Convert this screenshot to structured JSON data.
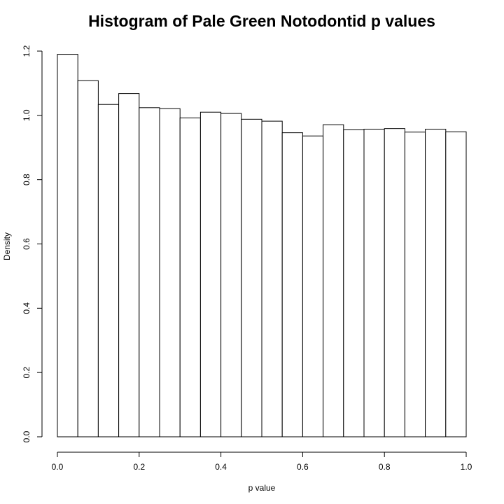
{
  "chart_data": {
    "type": "bar",
    "title": "Histogram of Pale Green Notodontid p values",
    "xlabel": "p value",
    "ylabel": "Density",
    "xlim": [
      0,
      1
    ],
    "ylim": [
      0,
      1.2
    ],
    "x_ticks": [
      "0.0",
      "0.2",
      "0.4",
      "0.6",
      "0.8",
      "1.0"
    ],
    "y_ticks": [
      "0.0",
      "0.2",
      "0.4",
      "0.6",
      "0.8",
      "1.0",
      "1.2"
    ],
    "bin_width": 0.05,
    "bins": [
      {
        "start": 0.0,
        "end": 0.05,
        "value": 1.19
      },
      {
        "start": 0.05,
        "end": 0.1,
        "value": 1.108
      },
      {
        "start": 0.1,
        "end": 0.15,
        "value": 1.034
      },
      {
        "start": 0.15,
        "end": 0.2,
        "value": 1.068
      },
      {
        "start": 0.2,
        "end": 0.25,
        "value": 1.024
      },
      {
        "start": 0.25,
        "end": 0.3,
        "value": 1.021
      },
      {
        "start": 0.3,
        "end": 0.35,
        "value": 0.992
      },
      {
        "start": 0.35,
        "end": 0.4,
        "value": 1.01
      },
      {
        "start": 0.4,
        "end": 0.45,
        "value": 1.006
      },
      {
        "start": 0.45,
        "end": 0.5,
        "value": 0.988
      },
      {
        "start": 0.5,
        "end": 0.55,
        "value": 0.982
      },
      {
        "start": 0.55,
        "end": 0.6,
        "value": 0.946
      },
      {
        "start": 0.6,
        "end": 0.65,
        "value": 0.936
      },
      {
        "start": 0.65,
        "end": 0.7,
        "value": 0.971
      },
      {
        "start": 0.7,
        "end": 0.75,
        "value": 0.955
      },
      {
        "start": 0.75,
        "end": 0.8,
        "value": 0.957
      },
      {
        "start": 0.8,
        "end": 0.85,
        "value": 0.959
      },
      {
        "start": 0.85,
        "end": 0.9,
        "value": 0.948
      },
      {
        "start": 0.9,
        "end": 0.95,
        "value": 0.957
      },
      {
        "start": 0.95,
        "end": 1.0,
        "value": 0.949
      }
    ],
    "grid": false,
    "bar_fill": "#ffffff",
    "bar_stroke": "#000000"
  }
}
